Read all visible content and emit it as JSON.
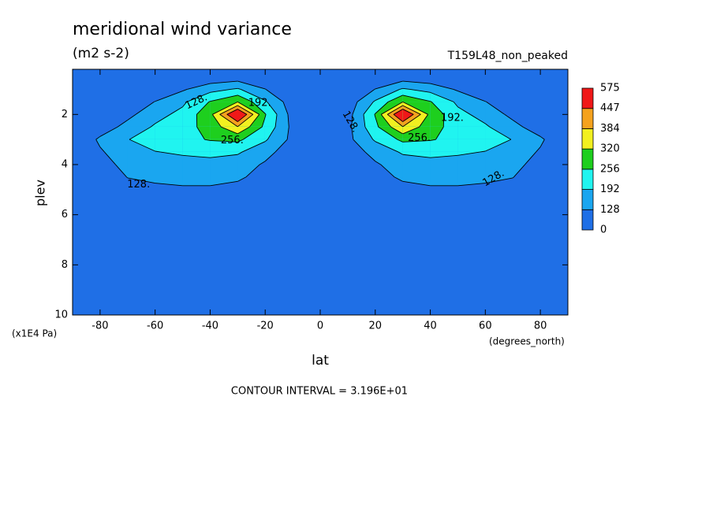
{
  "chart_data": {
    "type": "contour",
    "title": "meridional wind variance",
    "subtitle": "(m2 s-2)",
    "dataset": "T159L48_non_peaked",
    "x_label": "lat",
    "x_units": "(degrees_north)",
    "y_label": "plev",
    "y_units": "(x1E4 Pa)",
    "footer": "CONTOUR INTERVAL = 3.196E+01",
    "xlim": [
      -90,
      90
    ],
    "ylim": [
      10,
      0.2
    ],
    "xticks": [
      -80,
      -60,
      -40,
      -20,
      0,
      20,
      40,
      60,
      80
    ],
    "yticks": [
      2,
      4,
      6,
      8,
      10
    ],
    "levels": [
      0,
      128,
      192,
      256,
      320,
      384,
      447,
      575
    ],
    "colors": [
      "#1f6fe6",
      "#1aa6f0",
      "#20f4f0",
      "#1ecf1e",
      "#f2f020",
      "#f5a21e",
      "#f01818"
    ],
    "contour_labels": [
      {
        "value": 128,
        "label": "128."
      },
      {
        "value": 192,
        "label": "192."
      },
      {
        "value": 256,
        "label": "256."
      },
      {
        "value": 128,
        "label": "128."
      },
      {
        "value": 128,
        "label": "128."
      },
      {
        "value": 192,
        "label": "192."
      },
      {
        "value": 256,
        "label": "256."
      },
      {
        "value": 128,
        "label": "128."
      }
    ],
    "x": [
      -90,
      -80,
      -70,
      -60,
      -50,
      -40,
      -30,
      -20,
      -10,
      0,
      10,
      20,
      30,
      40,
      50,
      60,
      70,
      80,
      90
    ],
    "y": [
      0.2,
      0.5,
      1,
      1.5,
      2,
      2.5,
      3,
      3.5,
      4,
      4.5,
      5,
      6,
      7,
      8,
      9,
      10
    ],
    "z": [
      [
        130,
        90,
        50,
        30,
        20,
        20,
        20,
        30,
        50,
        50,
        50,
        30,
        20,
        20,
        20,
        30,
        50,
        90,
        130
      ],
      [
        60,
        40,
        30,
        40,
        60,
        80,
        90,
        70,
        50,
        50,
        50,
        70,
        90,
        80,
        60,
        40,
        30,
        40,
        60
      ],
      [
        40,
        40,
        50,
        80,
        120,
        170,
        200,
        130,
        60,
        50,
        60,
        130,
        200,
        170,
        120,
        80,
        50,
        40,
        40
      ],
      [
        40,
        50,
        80,
        130,
        180,
        260,
        320,
        200,
        90,
        50,
        90,
        200,
        320,
        260,
        180,
        130,
        80,
        50,
        40
      ],
      [
        40,
        60,
        110,
        170,
        210,
        300,
        540,
        260,
        100,
        50,
        100,
        260,
        540,
        300,
        210,
        170,
        110,
        60,
        40
      ],
      [
        50,
        90,
        150,
        200,
        230,
        280,
        380,
        240,
        110,
        50,
        110,
        240,
        380,
        280,
        230,
        200,
        150,
        90,
        50
      ],
      [
        60,
        140,
        190,
        220,
        240,
        260,
        270,
        200,
        110,
        60,
        110,
        200,
        270,
        260,
        240,
        220,
        190,
        140,
        60
      ],
      [
        50,
        120,
        170,
        190,
        200,
        210,
        200,
        150,
        90,
        60,
        90,
        150,
        200,
        210,
        200,
        190,
        170,
        120,
        50
      ],
      [
        40,
        100,
        150,
        160,
        170,
        170,
        160,
        120,
        80,
        60,
        80,
        120,
        160,
        170,
        170,
        160,
        150,
        100,
        40
      ],
      [
        30,
        70,
        130,
        140,
        150,
        150,
        140,
        100,
        80,
        70,
        80,
        100,
        140,
        150,
        150,
        140,
        130,
        70,
        30
      ],
      [
        30,
        50,
        100,
        115,
        118,
        118,
        105,
        80,
        80,
        80,
        80,
        80,
        105,
        118,
        118,
        115,
        100,
        50,
        30
      ],
      [
        30,
        40,
        50,
        60,
        60,
        60,
        60,
        65,
        80,
        85,
        80,
        65,
        60,
        60,
        60,
        60,
        50,
        40,
        30
      ],
      [
        30,
        35,
        40,
        45,
        50,
        50,
        50,
        60,
        75,
        80,
        75,
        60,
        50,
        50,
        50,
        45,
        40,
        35,
        30
      ],
      [
        30,
        35,
        40,
        45,
        50,
        50,
        50,
        55,
        70,
        75,
        70,
        55,
        50,
        50,
        50,
        45,
        40,
        35,
        30
      ],
      [
        30,
        35,
        40,
        45,
        50,
        50,
        50,
        55,
        70,
        75,
        70,
        55,
        50,
        50,
        50,
        45,
        40,
        35,
        30
      ],
      [
        30,
        35,
        40,
        45,
        50,
        50,
        50,
        55,
        70,
        75,
        70,
        55,
        50,
        50,
        50,
        45,
        40,
        35,
        30
      ]
    ]
  }
}
